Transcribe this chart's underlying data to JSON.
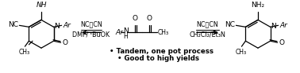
{
  "bg_color": "#ffffff",
  "figsize": [
    3.78,
    0.93
  ],
  "dpi": 100,
  "text_color": "#000000",
  "struct_fontsize": 6.5,
  "small_fontsize": 5.5,
  "reagent_fontsize": 5.8,
  "bullet_fontsize": 6.2,
  "bullet1": "• Tandem, one pot process",
  "bullet2": "• Good to high yields",
  "reagent1_top": "NC—CN",
  "reagent1_bot": "DMF/ ᵗBuOK",
  "reagent2_top": "NC—CN",
  "reagent2_bot": "CH₂Cl₂/Et₃N"
}
